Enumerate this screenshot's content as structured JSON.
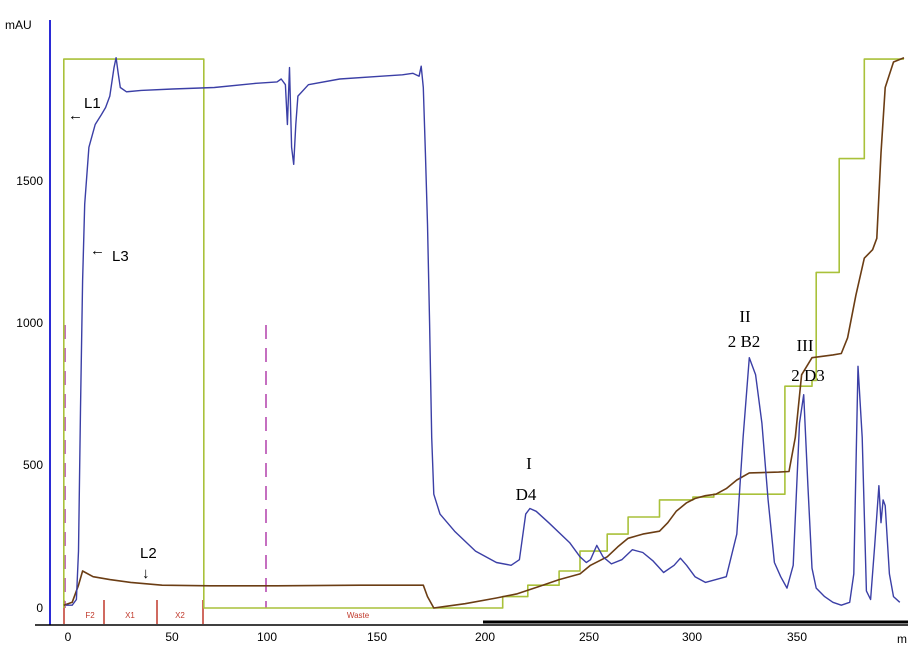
{
  "chart_data": {
    "type": "line",
    "ylabel": "mAU",
    "xlabel": "m",
    "xlim": [
      -15,
      405
    ],
    "ylim": [
      -60,
      1980
    ],
    "x_ticks": [
      0,
      50,
      100,
      150,
      200,
      250,
      300,
      350
    ],
    "y_ticks": [
      0,
      500,
      1000,
      1500
    ],
    "colors": {
      "uv": "#3b3fa6",
      "conductivity": "#6b3d14",
      "gradient": "#a9c13a",
      "frac": "#c0392b",
      "inject": "#c56fc0",
      "left_axis": "#2b2bd6"
    },
    "series": [
      {
        "key": "uv",
        "values": [
          [
            -1,
            10
          ],
          [
            2,
            10
          ],
          [
            4,
            30
          ],
          [
            5,
            200
          ],
          [
            6,
            700
          ],
          [
            7,
            1150
          ],
          [
            8,
            1420
          ],
          [
            10,
            1620
          ],
          [
            13,
            1700
          ],
          [
            16,
            1735
          ],
          [
            18,
            1760
          ],
          [
            20,
            1800
          ],
          [
            21,
            1850
          ],
          [
            22,
            1900
          ],
          [
            23,
            1935
          ],
          [
            24,
            1880
          ],
          [
            25,
            1830
          ],
          [
            28,
            1815
          ],
          [
            35,
            1820
          ],
          [
            50,
            1825
          ],
          [
            70,
            1830
          ],
          [
            90,
            1845
          ],
          [
            100,
            1850
          ],
          [
            102,
            1860
          ],
          [
            104,
            1840
          ],
          [
            105,
            1700
          ],
          [
            106,
            1900
          ],
          [
            107,
            1620
          ],
          [
            108,
            1560
          ],
          [
            109,
            1700
          ],
          [
            110,
            1800
          ],
          [
            115,
            1840
          ],
          [
            130,
            1860
          ],
          [
            150,
            1870
          ],
          [
            160,
            1875
          ],
          [
            165,
            1880
          ],
          [
            168,
            1870
          ],
          [
            169,
            1905
          ],
          [
            170,
            1830
          ],
          [
            171,
            1600
          ],
          [
            172,
            1350
          ],
          [
            173,
            1000
          ],
          [
            174,
            600
          ],
          [
            175,
            400
          ],
          [
            178,
            330
          ],
          [
            185,
            270
          ],
          [
            195,
            200
          ],
          [
            205,
            160
          ],
          [
            212,
            150
          ],
          [
            216,
            170
          ],
          [
            219,
            330
          ],
          [
            221,
            350
          ],
          [
            224,
            340
          ],
          [
            230,
            300
          ],
          [
            240,
            230
          ],
          [
            245,
            180
          ],
          [
            248,
            160
          ],
          [
            250,
            170
          ],
          [
            253,
            220
          ],
          [
            256,
            180
          ],
          [
            260,
            155
          ],
          [
            265,
            170
          ],
          [
            270,
            205
          ],
          [
            275,
            195
          ],
          [
            280,
            165
          ],
          [
            285,
            125
          ],
          [
            290,
            150
          ],
          [
            293,
            175
          ],
          [
            296,
            150
          ],
          [
            300,
            110
          ],
          [
            305,
            90
          ],
          [
            310,
            100
          ],
          [
            315,
            110
          ],
          [
            320,
            260
          ],
          [
            323,
            600
          ],
          [
            326,
            880
          ],
          [
            329,
            820
          ],
          [
            332,
            650
          ],
          [
            335,
            380
          ],
          [
            338,
            160
          ],
          [
            341,
            110
          ],
          [
            344,
            70
          ],
          [
            347,
            150
          ],
          [
            350,
            650
          ],
          [
            352,
            750
          ],
          [
            354,
            430
          ],
          [
            356,
            140
          ],
          [
            358,
            70
          ],
          [
            362,
            40
          ],
          [
            366,
            20
          ],
          [
            370,
            10
          ],
          [
            374,
            20
          ],
          [
            376,
            120
          ],
          [
            378,
            850
          ],
          [
            380,
            600
          ],
          [
            382,
            60
          ],
          [
            384,
            30
          ],
          [
            386,
            220
          ],
          [
            388,
            430
          ],
          [
            389,
            300
          ],
          [
            390,
            380
          ],
          [
            391,
            360
          ],
          [
            393,
            120
          ],
          [
            395,
            40
          ],
          [
            398,
            20
          ]
        ]
      },
      {
        "key": "conductivity",
        "values": [
          [
            -2,
            10
          ],
          [
            2,
            20
          ],
          [
            5,
            80
          ],
          [
            7,
            130
          ],
          [
            12,
            110
          ],
          [
            20,
            100
          ],
          [
            30,
            90
          ],
          [
            45,
            80
          ],
          [
            68,
            78
          ],
          [
            100,
            78
          ],
          [
            140,
            80
          ],
          [
            170,
            80
          ],
          [
            172,
            40
          ],
          [
            175,
            0
          ],
          [
            180,
            5
          ],
          [
            190,
            15
          ],
          [
            205,
            35
          ],
          [
            215,
            50
          ],
          [
            225,
            75
          ],
          [
            235,
            100
          ],
          [
            245,
            120
          ],
          [
            250,
            150
          ],
          [
            258,
            180
          ],
          [
            263,
            215
          ],
          [
            268,
            245
          ],
          [
            275,
            260
          ],
          [
            283,
            270
          ],
          [
            287,
            300
          ],
          [
            291,
            340
          ],
          [
            296,
            370
          ],
          [
            300,
            385
          ],
          [
            305,
            395
          ],
          [
            310,
            400
          ],
          [
            315,
            420
          ],
          [
            320,
            450
          ],
          [
            326,
            475
          ],
          [
            340,
            478
          ],
          [
            345,
            480
          ],
          [
            348,
            600
          ],
          [
            351,
            820
          ],
          [
            356,
            880
          ],
          [
            366,
            890
          ],
          [
            370,
            895
          ],
          [
            373,
            950
          ],
          [
            377,
            1100
          ],
          [
            381,
            1230
          ],
          [
            385,
            1260
          ],
          [
            387,
            1300
          ],
          [
            389,
            1600
          ],
          [
            391,
            1830
          ],
          [
            395,
            1920
          ],
          [
            400,
            1935
          ]
        ]
      },
      {
        "key": "gradient",
        "values": [
          [
            -2,
            0
          ],
          [
            -2,
            1930
          ],
          [
            65,
            1930
          ],
          [
            65,
            0
          ],
          [
            208,
            0
          ],
          [
            208,
            40
          ],
          [
            220,
            40
          ],
          [
            220,
            80
          ],
          [
            235,
            80
          ],
          [
            235,
            130
          ],
          [
            245,
            130
          ],
          [
            245,
            200
          ],
          [
            258,
            200
          ],
          [
            258,
            260
          ],
          [
            268,
            260
          ],
          [
            268,
            320
          ],
          [
            283,
            320
          ],
          [
            283,
            380
          ],
          [
            299,
            380
          ],
          [
            299,
            390
          ],
          [
            309,
            390
          ],
          [
            309,
            400
          ],
          [
            343,
            400
          ],
          [
            343,
            780
          ],
          [
            356,
            780
          ],
          [
            356,
            800
          ],
          [
            358,
            800
          ],
          [
            358,
            1180
          ],
          [
            369,
            1180
          ],
          [
            369,
            1580
          ],
          [
            381,
            1580
          ],
          [
            381,
            1930
          ],
          [
            400,
            1930
          ]
        ]
      }
    ]
  },
  "y_unit": "mAU",
  "x_unit": "m",
  "x_tick_labels": [
    "0",
    "50",
    "100",
    "150",
    "200",
    "250",
    "300",
    "350"
  ],
  "y_tick_labels": [
    "0",
    "500",
    "1000",
    "1500"
  ],
  "annotations": {
    "l1": "L1",
    "l3": "L3",
    "l2": "L2",
    "arrow_left_1": "←",
    "arrow_left_3": "←",
    "arrow_down_2": "↓"
  },
  "peaks": [
    {
      "roman": "I",
      "label": "D4"
    },
    {
      "roman": "II",
      "label": "2 B2"
    },
    {
      "roman": "III",
      "label": "2 D3"
    }
  ],
  "fractions": [
    "F2",
    "X1",
    "X2",
    "Waste"
  ]
}
